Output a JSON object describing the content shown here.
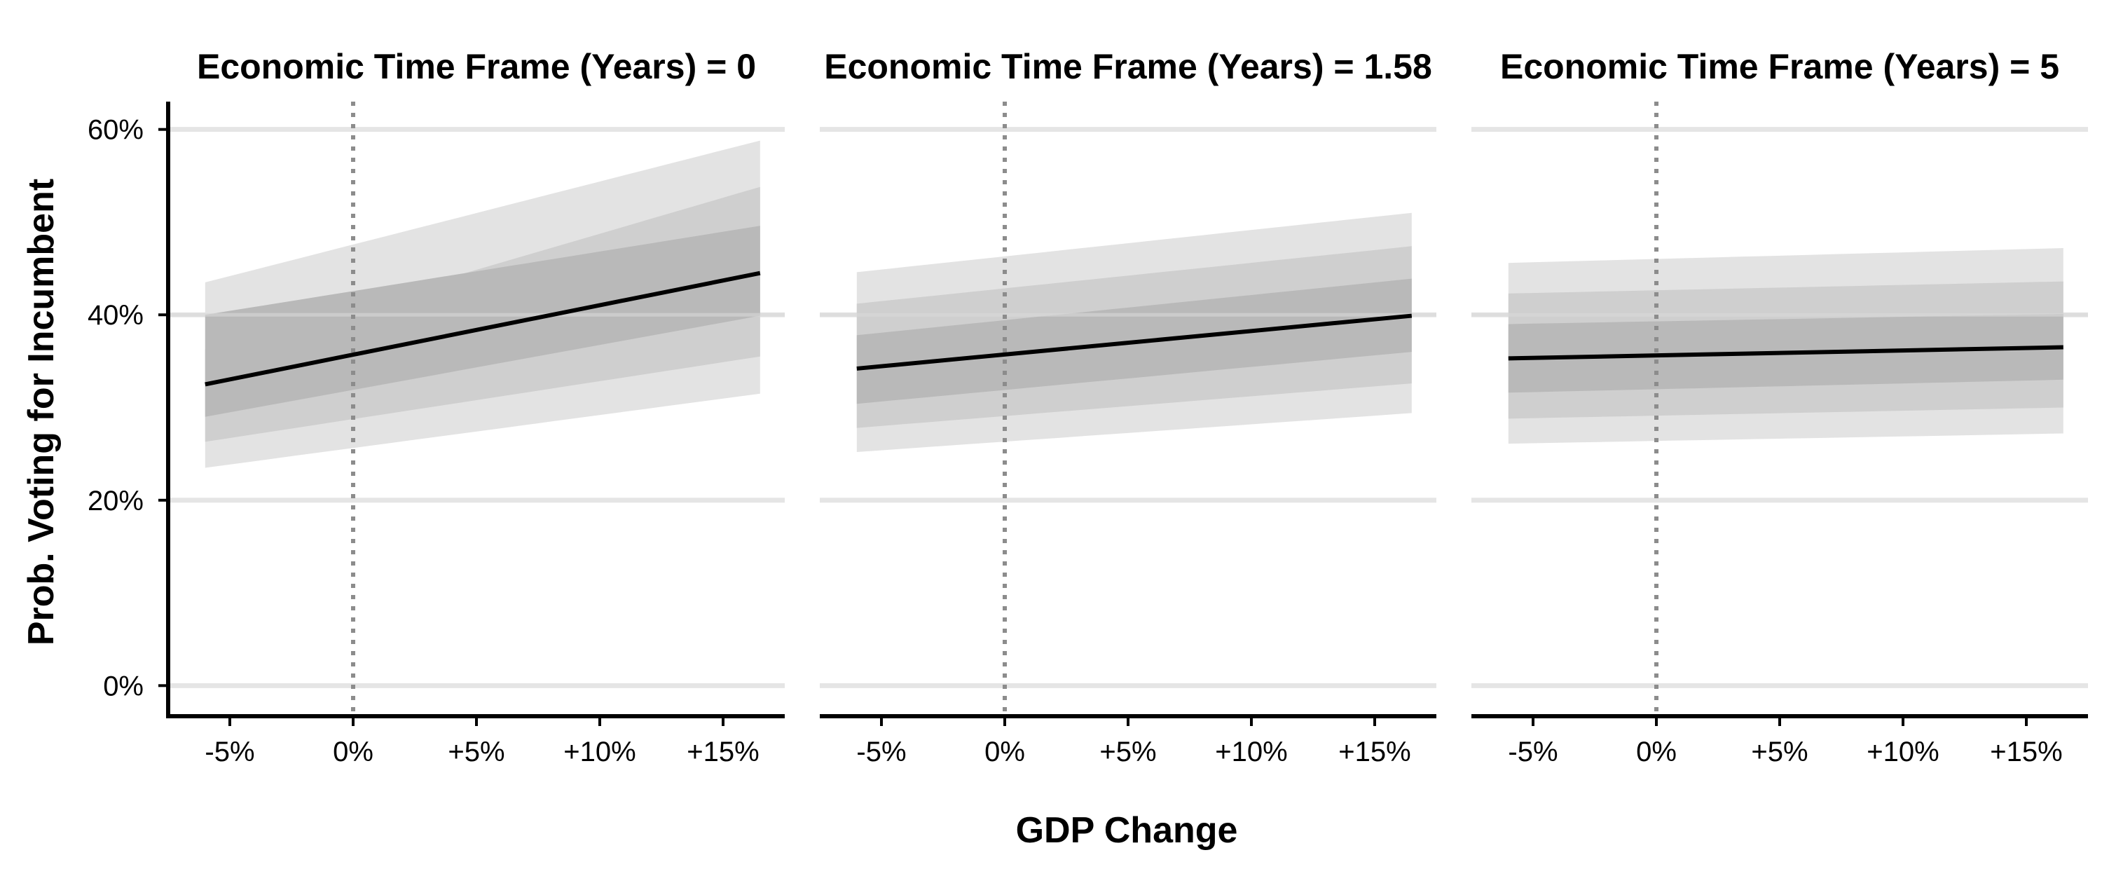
{
  "chart_data": {
    "type": "line",
    "facet_label": "Economic Time Frame (Years) =",
    "xlabel": "GDP Change",
    "ylabel": "Prob. Voting for Incumbent",
    "xlim": [
      -7.5,
      17.5
    ],
    "ylim": [
      -3,
      63
    ],
    "x_ticks": [
      -5,
      0,
      5,
      10,
      15
    ],
    "x_tick_labels": [
      "-5%",
      "0%",
      "+5%",
      "+10%",
      "+15%"
    ],
    "y_ticks": [
      0,
      20,
      40,
      60
    ],
    "y_tick_labels": [
      "0%",
      "20%",
      "40%",
      "60%"
    ],
    "reference_line_x": 0,
    "grid": "horizontal",
    "line_color": "#000000",
    "band_colors": [
      "#e3e3e3",
      "#cfcfcf",
      "#b9b9b9"
    ],
    "panels": [
      {
        "facet_value": "0",
        "x": [
          -6,
          16.5
        ],
        "line": [
          32.5,
          44.5
        ],
        "bands": [
          {
            "lower": [
              23.5,
              31.5
            ],
            "upper": [
              43.5,
              58.8
            ]
          },
          {
            "lower": [
              26.3,
              35.5
            ],
            "upper": [
              36.3,
              53.8
            ]
          },
          {
            "lower": [
              29.0,
              39.9
            ],
            "upper": [
              40.0,
              49.6
            ]
          }
        ]
      },
      {
        "facet_value": "1.58",
        "x": [
          -6,
          16.5
        ],
        "line": [
          34.2,
          39.9
        ],
        "bands": [
          {
            "lower": [
              25.2,
              29.4
            ],
            "upper": [
              44.6,
              51.0
            ]
          },
          {
            "lower": [
              27.8,
              32.6
            ],
            "upper": [
              41.2,
              47.4
            ]
          },
          {
            "lower": [
              30.4,
              36.0
            ],
            "upper": [
              37.8,
              43.9
            ]
          }
        ]
      },
      {
        "facet_value": "5",
        "x": [
          -6,
          16.5
        ],
        "line": [
          35.3,
          36.5
        ],
        "bands": [
          {
            "lower": [
              26.1,
              27.2
            ],
            "upper": [
              45.6,
              47.2
            ]
          },
          {
            "lower": [
              28.8,
              30.0
            ],
            "upper": [
              42.3,
              43.6
            ]
          },
          {
            "lower": [
              31.6,
              33.0
            ],
            "upper": [
              39.0,
              40.1
            ]
          }
        ]
      }
    ]
  }
}
